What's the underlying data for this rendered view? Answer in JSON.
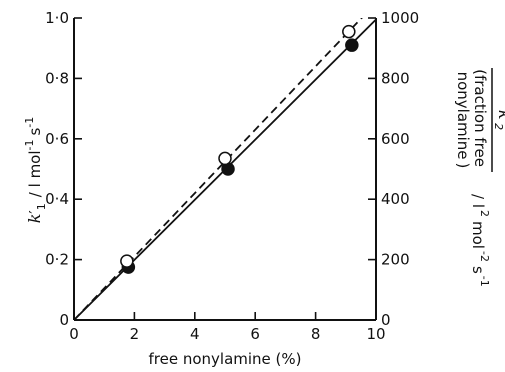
{
  "chart_data": {
    "type": "scatter",
    "xlabel": "free nonylamine (%)",
    "ylabel_left": {
      "symbol": "k",
      "subscript": "1",
      "prime": "′",
      "units": "/ l mol",
      "exp1": "-1",
      "exp2": "-1",
      "s": "s"
    },
    "ylabel_right": {
      "numerator": "k′",
      "numerator_sub": "2",
      "paren_open": "(",
      "line1": "fraction free",
      "line2": "nonylamine",
      "paren_close": ")",
      "units": "/ l",
      "exp_sq": "2",
      "mol": "mol",
      "exp_m2": "-2",
      "s": "s",
      "exp_m1": "-1"
    },
    "x_ticks": [
      "0",
      "2",
      "4",
      "6",
      "8",
      "10"
    ],
    "y_left_ticks": [
      "0",
      "0·2",
      "0·4",
      "0·6",
      "0·8",
      "1·0"
    ],
    "y_right_ticks": [
      "0",
      "200",
      "400",
      "600",
      "800",
      "1000"
    ],
    "xlim": [
      0,
      10
    ],
    "ylim_left": [
      0,
      1.0
    ],
    "ylim_right": [
      0,
      1000
    ],
    "grid": false,
    "series": [
      {
        "marker": "filled-circle",
        "axis": "left",
        "line": "solid",
        "x": [
          1.8,
          5.1,
          9.2
        ],
        "y": [
          0.175,
          0.5,
          0.91
        ],
        "fit": {
          "x": [
            0,
            10
          ],
          "y": [
            0,
            0.995
          ]
        }
      },
      {
        "marker": "open-circle",
        "axis": "right",
        "line": "dashed",
        "x": [
          1.75,
          5.0,
          9.1
        ],
        "y": [
          195,
          535,
          955
        ],
        "fit": {
          "x": [
            0,
            10
          ],
          "y": [
            0,
            1050
          ]
        }
      }
    ]
  }
}
